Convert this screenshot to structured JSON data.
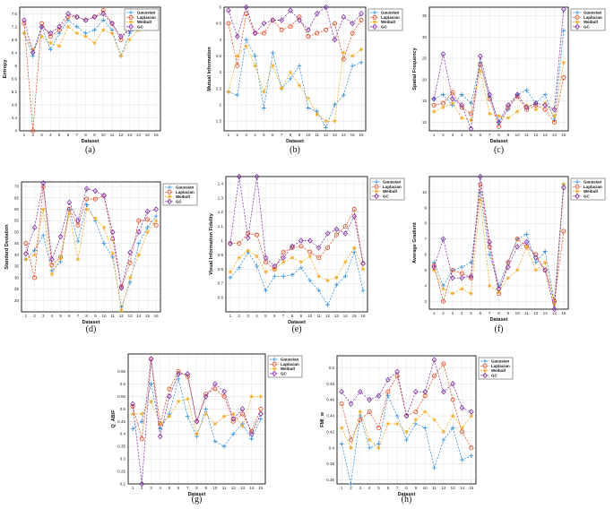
{
  "series_names": [
    "Gaussian",
    "Laplacian",
    "Weibull",
    "GC"
  ],
  "series_colors": [
    "#2e8bd8",
    "#e2461c",
    "#f0a81c",
    "#7a2da0"
  ],
  "chart_data": [
    {
      "type": "line",
      "caption": "(a)",
      "title": "",
      "xlabel": "Dataset",
      "ylabel": "Entropy",
      "ylim": [
        4,
        7.8
      ],
      "yticks": [
        4,
        4.4,
        4.8,
        5.2,
        5.6,
        6,
        6.4,
        6.8,
        7.2,
        7.6
      ],
      "ytick_labels": [
        "4",
        "4.4",
        "4.8",
        "5.2",
        "5.6",
        "6",
        "6.4",
        "6.8",
        "7.2",
        "7.6"
      ],
      "x": [
        1,
        2,
        3,
        4,
        5,
        6,
        7,
        8,
        9,
        10,
        11,
        12,
        13,
        14,
        15,
        16
      ],
      "xtick_labels": [
        "1",
        "2",
        "3",
        "4",
        "5",
        "6",
        "7",
        "8",
        "9",
        "10",
        "11",
        "12",
        "13",
        "14",
        "15",
        "16"
      ],
      "series": [
        {
          "name": "Gaussian",
          "values": [
            7.0,
            6.3,
            7.2,
            6.5,
            7.0,
            7.4,
            7.2,
            7.0,
            7.1,
            7.4,
            7.1,
            6.3,
            7.0,
            7.2,
            7.3,
            7.4
          ]
        },
        {
          "name": "Laplacian",
          "values": [
            7.3,
            4.0,
            7.3,
            6.9,
            7.1,
            7.5,
            7.5,
            7.4,
            7.5,
            7.7,
            7.3,
            6.8,
            7.2,
            7.5,
            7.2,
            7.3
          ]
        },
        {
          "name": "Weibull",
          "values": [
            7.0,
            6.5,
            6.9,
            6.7,
            6.6,
            7.2,
            7.0,
            6.9,
            6.7,
            7.1,
            7.0,
            6.3,
            6.8,
            7.1,
            7.2,
            7.4
          ]
        },
        {
          "name": "GC",
          "values": [
            7.4,
            6.4,
            7.2,
            7.0,
            7.2,
            7.6,
            7.5,
            7.4,
            7.5,
            7.6,
            7.3,
            6.9,
            7.1,
            7.4,
            7.4,
            7.5
          ]
        }
      ]
    },
    {
      "type": "line",
      "caption": "(b)",
      "title": "",
      "xlabel": "Dataset",
      "ylabel": "Mutual Information",
      "ylim": [
        1.2,
        5.0
      ],
      "yticks": [
        1.5,
        2,
        2.5,
        3,
        3.5,
        4,
        4.5,
        5
      ],
      "ytick_labels": [
        "1.5",
        "2",
        "2.5",
        "3",
        "3.5",
        "4",
        "4.5",
        "5"
      ],
      "x": [
        1,
        2,
        3,
        4,
        5,
        6,
        7,
        8,
        9,
        10,
        11,
        12,
        13,
        14,
        15,
        16
      ],
      "xtick_labels": [
        "1",
        "2",
        "3",
        "4",
        "5",
        "6",
        "7",
        "8",
        "9",
        "10",
        "11",
        "12",
        "13",
        "14",
        "15",
        "16"
      ],
      "series": [
        {
          "name": "Gaussian",
          "values": [
            2.4,
            2.3,
            4.0,
            3.5,
            1.9,
            3.6,
            2.5,
            2.8,
            3.2,
            1.9,
            1.8,
            1.3,
            2.0,
            2.3,
            3.2,
            3.3
          ]
        },
        {
          "name": "Laplacian",
          "values": [
            4.5,
            3.2,
            4.8,
            4.2,
            4.2,
            4.6,
            4.3,
            4.4,
            4.7,
            4.1,
            4.2,
            4.3,
            4.5,
            3.4,
            4.2,
            4.6
          ]
        },
        {
          "name": "Weibull",
          "values": [
            2.4,
            3.5,
            3.8,
            3.2,
            2.4,
            3.2,
            2.5,
            3.0,
            2.6,
            2.2,
            1.7,
            1.5,
            1.5,
            3.6,
            3.5,
            3.7
          ]
        },
        {
          "name": "GC",
          "values": [
            4.9,
            4.1,
            5.0,
            4.2,
            4.5,
            4.6,
            4.6,
            4.9,
            4.6,
            4.3,
            4.8,
            5.0,
            4.0,
            4.7,
            4.5,
            4.8
          ]
        }
      ]
    },
    {
      "type": "line",
      "caption": "(c)",
      "title": "",
      "xlabel": "Dataset",
      "ylabel": "Spatial Frequency",
      "ylim": [
        8,
        37
      ],
      "yticks": [
        10,
        15,
        20,
        25,
        30,
        35
      ],
      "ytick_labels": [
        "10",
        "15",
        "20",
        "25",
        "30",
        "35"
      ],
      "x": [
        1,
        2,
        3,
        4,
        5,
        6,
        7,
        8,
        9,
        10,
        11,
        12,
        13,
        14,
        15
      ],
      "xtick_labels": [
        "1",
        "2",
        "3",
        "4",
        "5",
        "6",
        "7",
        "8",
        "9",
        "10",
        "11",
        "12",
        "13",
        "14",
        "15"
      ],
      "series": [
        {
          "name": "Gaussian",
          "values": [
            15.5,
            16.5,
            14.0,
            16.5,
            14.5,
            24.0,
            16.0,
            10.0,
            13.0,
            16.5,
            17.5,
            14.5,
            16.5,
            10.5,
            31.5
          ]
        },
        {
          "name": "Laplacian",
          "values": [
            14.0,
            14.5,
            17.0,
            13.5,
            12.0,
            23.5,
            15.5,
            9.0,
            13.5,
            16.0,
            13.0,
            14.0,
            13.0,
            10.0,
            20.5
          ]
        },
        {
          "name": "Weibull",
          "values": [
            12.5,
            13.5,
            14.5,
            11.0,
            10.5,
            22.0,
            12.0,
            11.5,
            11.0,
            12.5,
            14.0,
            13.0,
            14.5,
            11.5,
            24.0
          ]
        },
        {
          "name": "GC",
          "values": [
            15.5,
            26.0,
            15.5,
            14.0,
            8.5,
            25.5,
            16.5,
            10.0,
            14.0,
            16.5,
            13.5,
            14.5,
            14.0,
            13.0,
            36.5
          ]
        }
      ]
    },
    {
      "type": "line",
      "caption": "(d)",
      "title": "",
      "xlabel": "Dataset",
      "ylabel": "Standard Deviation",
      "ylim": [
        15,
        72
      ],
      "yticks": [
        20,
        25,
        30,
        35,
        40,
        45,
        50,
        55,
        60,
        65,
        70
      ],
      "ytick_labels": [
        "20",
        "25",
        "30",
        "35",
        "40",
        "45",
        "50",
        "55",
        "60",
        "65",
        "70"
      ],
      "x": [
        1,
        2,
        3,
        4,
        5,
        6,
        7,
        8,
        9,
        10,
        11,
        12,
        13,
        14,
        15,
        16
      ],
      "xtick_labels": [
        "1",
        "2",
        "3",
        "4",
        "5",
        "6",
        "7",
        "8",
        "9",
        "10",
        "11",
        "12",
        "13",
        "14",
        "15",
        "16"
      ],
      "series": [
        {
          "name": "Gaussian",
          "values": [
            38.0,
            42.0,
            48.5,
            33.0,
            37.0,
            60.0,
            46.0,
            62.0,
            55.0,
            45.0,
            39.0,
            17.0,
            28.0,
            45.0,
            52.0,
            57.0
          ]
        },
        {
          "name": "Laplacian",
          "values": [
            45.0,
            30.0,
            70.0,
            35.5,
            39.0,
            60.0,
            53.0,
            64.5,
            64.5,
            66.0,
            47.0,
            26.0,
            36.5,
            55.0,
            55.5,
            53.0
          ]
        },
        {
          "name": "Weibull",
          "values": [
            38.0,
            40.0,
            60.0,
            31.5,
            38.5,
            58.0,
            38.0,
            60.0,
            56.0,
            52.0,
            40.5,
            15.5,
            30.0,
            40.0,
            50.0,
            55.0
          ]
        },
        {
          "name": "GC",
          "values": [
            40.5,
            52.0,
            71.5,
            38.0,
            48.0,
            63.0,
            55.0,
            69.0,
            68.0,
            66.0,
            50.0,
            25.5,
            41.0,
            50.0,
            59.0,
            60.0
          ]
        }
      ]
    },
    {
      "type": "line",
      "caption": "(e)",
      "title": "",
      "xlabel": "Dataset",
      "ylabel": "Visual Information Fidelity",
      "ylim": [
        0.5,
        1.45
      ],
      "yticks": [
        0.6,
        0.7,
        0.8,
        0.9,
        1.0,
        1.1,
        1.2,
        1.3,
        1.4
      ],
      "ytick_labels": [
        "0.6",
        "0.7",
        "0.8",
        "0.9",
        "1",
        "1.1",
        "1.2",
        "1.3",
        "1.4"
      ],
      "x": [
        1,
        2,
        3,
        4,
        5,
        6,
        7,
        8,
        9,
        10,
        11,
        12,
        13,
        14,
        15,
        16
      ],
      "xtick_labels": [
        "1",
        "2",
        "3",
        "4",
        "5",
        "6",
        "7",
        "8",
        "9",
        "10",
        "11",
        "12",
        "13",
        "14",
        "15",
        "16"
      ],
      "series": [
        {
          "name": "Gaussian",
          "values": [
            0.74,
            0.81,
            0.92,
            0.82,
            0.65,
            0.75,
            0.75,
            0.76,
            0.81,
            0.72,
            0.65,
            0.55,
            0.69,
            0.75,
            0.92,
            0.65
          ]
        },
        {
          "name": "Laplacian",
          "values": [
            0.98,
            0.98,
            1.05,
            1.04,
            0.85,
            0.8,
            0.92,
            0.95,
            0.96,
            0.92,
            0.88,
            0.95,
            1.04,
            1.1,
            1.22,
            0.84
          ]
        },
        {
          "name": "Weibull",
          "values": [
            0.78,
            0.88,
            0.93,
            0.89,
            0.78,
            0.8,
            0.85,
            0.88,
            0.85,
            0.89,
            0.75,
            0.72,
            0.74,
            0.85,
            0.95,
            0.8
          ]
        },
        {
          "name": "GC",
          "values": [
            0.98,
            1.45,
            1.02,
            1.45,
            0.88,
            0.82,
            0.88,
            0.96,
            1.0,
            1.0,
            0.95,
            1.05,
            1.08,
            1.05,
            1.17,
            0.84
          ]
        }
      ]
    },
    {
      "type": "line",
      "caption": "(f)",
      "title": "",
      "xlabel": "Dataset",
      "ylabel": "Average Gradient",
      "ylim": [
        2.5,
        11
      ],
      "yticks": [
        3,
        4,
        5,
        6,
        7,
        8,
        9,
        10
      ],
      "ytick_labels": [
        "3",
        "4",
        "5",
        "6",
        "7",
        "8",
        "9",
        "10"
      ],
      "x": [
        1,
        2,
        3,
        4,
        5,
        6,
        7,
        8,
        9,
        10,
        11,
        12,
        13,
        14,
        15
      ],
      "xtick_labels": [
        "1",
        "2",
        "3",
        "4",
        "5",
        "6",
        "7",
        "8",
        "9",
        "10",
        "11",
        "12",
        "13",
        "14",
        "15"
      ],
      "series": [
        {
          "name": "Gaussian",
          "values": [
            5.5,
            4.0,
            5.0,
            5.2,
            5.5,
            10.0,
            6.0,
            4.0,
            5.5,
            7.0,
            7.3,
            5.5,
            6.2,
            3.0,
            10.5
          ]
        },
        {
          "name": "Laplacian",
          "values": [
            5.3,
            3.0,
            5.0,
            4.8,
            4.5,
            10.5,
            6.5,
            3.5,
            5.5,
            7.0,
            6.5,
            6.0,
            5.0,
            3.0,
            7.5
          ]
        },
        {
          "name": "Weibull",
          "values": [
            5.0,
            3.8,
            3.5,
            3.8,
            3.5,
            9.5,
            4.0,
            3.6,
            4.5,
            5.0,
            6.5,
            5.0,
            5.5,
            2.8,
            10.5
          ]
        },
        {
          "name": "GC",
          "values": [
            5.2,
            7.0,
            4.5,
            4.5,
            4.6,
            11.0,
            6.8,
            3.8,
            5.2,
            6.5,
            6.8,
            5.8,
            5.0,
            2.5,
            10.3
          ]
        }
      ]
    },
    {
      "type": "line",
      "caption": "(g)",
      "title": "",
      "xlabel": "Dataset",
      "ylabel": "Q_AB/F",
      "ylim": [
        0.2,
        0.72
      ],
      "yticks": [
        0.2,
        0.25,
        0.3,
        0.35,
        0.4,
        0.45,
        0.5,
        0.55,
        0.6,
        0.65
      ],
      "ytick_labels": [
        "0.2",
        "0.25",
        "0.3",
        "0.35",
        "0.4",
        "0.45",
        "0.5",
        "0.55",
        "0.6",
        "0.65"
      ],
      "x": [
        1,
        2,
        3,
        4,
        5,
        6,
        7,
        8,
        9,
        10,
        11,
        12,
        13,
        14,
        15
      ],
      "xtick_labels": [
        "1",
        "2",
        "3",
        "4",
        "5",
        "6",
        "7",
        "8",
        "9",
        "10",
        "11",
        "12",
        "13",
        "14",
        "15"
      ],
      "series": [
        {
          "name": "Gaussian",
          "values": [
            0.42,
            0.45,
            0.6,
            0.42,
            0.48,
            0.62,
            0.47,
            0.39,
            0.5,
            0.37,
            0.35,
            0.4,
            0.44,
            0.38,
            0.46
          ]
        },
        {
          "name": "Laplacian",
          "values": [
            0.51,
            0.38,
            0.7,
            0.44,
            0.58,
            0.65,
            0.63,
            0.45,
            0.56,
            0.58,
            0.55,
            0.45,
            0.48,
            0.41,
            0.5
          ]
        },
        {
          "name": "Weibull",
          "values": [
            0.48,
            0.48,
            0.53,
            0.44,
            0.47,
            0.53,
            0.54,
            0.4,
            0.48,
            0.44,
            0.47,
            0.48,
            0.43,
            0.55,
            0.55
          ]
        },
        {
          "name": "GC",
          "values": [
            0.52,
            0.2,
            0.7,
            0.39,
            0.55,
            0.64,
            0.64,
            0.45,
            0.55,
            0.6,
            0.57,
            0.46,
            0.5,
            0.4,
            0.48
          ]
        }
      ]
    },
    {
      "type": "line",
      "caption": "(h)",
      "title": "",
      "xlabel": "Dataset",
      "ylabel": "FMI_w",
      "ylim": [
        0.355,
        0.515
      ],
      "yticks": [
        0.36,
        0.38,
        0.4,
        0.42,
        0.44,
        0.46,
        0.48,
        0.5
      ],
      "ytick_labels": [
        "0.36",
        "0.38",
        "0.4",
        "0.42",
        "0.44",
        "0.46",
        "0.48",
        "0.5"
      ],
      "x": [
        1,
        2,
        3,
        4,
        5,
        6,
        7,
        8,
        9,
        10,
        11,
        12,
        13,
        14,
        15
      ],
      "xtick_labels": [
        "1",
        "2",
        "3",
        "4",
        "5",
        "6",
        "7",
        "8",
        "9",
        "10",
        "11",
        "12",
        "13",
        "14",
        "15"
      ],
      "series": [
        {
          "name": "Gaussian",
          "values": [
            0.405,
            0.355,
            0.44,
            0.4,
            0.405,
            0.465,
            0.44,
            0.41,
            0.43,
            0.425,
            0.375,
            0.41,
            0.425,
            0.385,
            0.39
          ]
        },
        {
          "name": "Laplacian",
          "values": [
            0.455,
            0.41,
            0.435,
            0.445,
            0.425,
            0.47,
            0.49,
            0.44,
            0.445,
            0.465,
            0.49,
            0.505,
            0.46,
            0.42,
            0.4
          ]
        },
        {
          "name": "Weibull",
          "values": [
            0.425,
            0.4,
            0.445,
            0.41,
            0.4,
            0.43,
            0.43,
            0.42,
            0.435,
            0.445,
            0.435,
            0.42,
            0.44,
            0.425,
            0.44
          ]
        },
        {
          "name": "GC",
          "values": [
            0.47,
            0.455,
            0.47,
            0.46,
            0.465,
            0.485,
            0.495,
            0.44,
            0.47,
            0.47,
            0.51,
            0.47,
            0.48,
            0.45,
            0.445
          ]
        }
      ]
    }
  ]
}
